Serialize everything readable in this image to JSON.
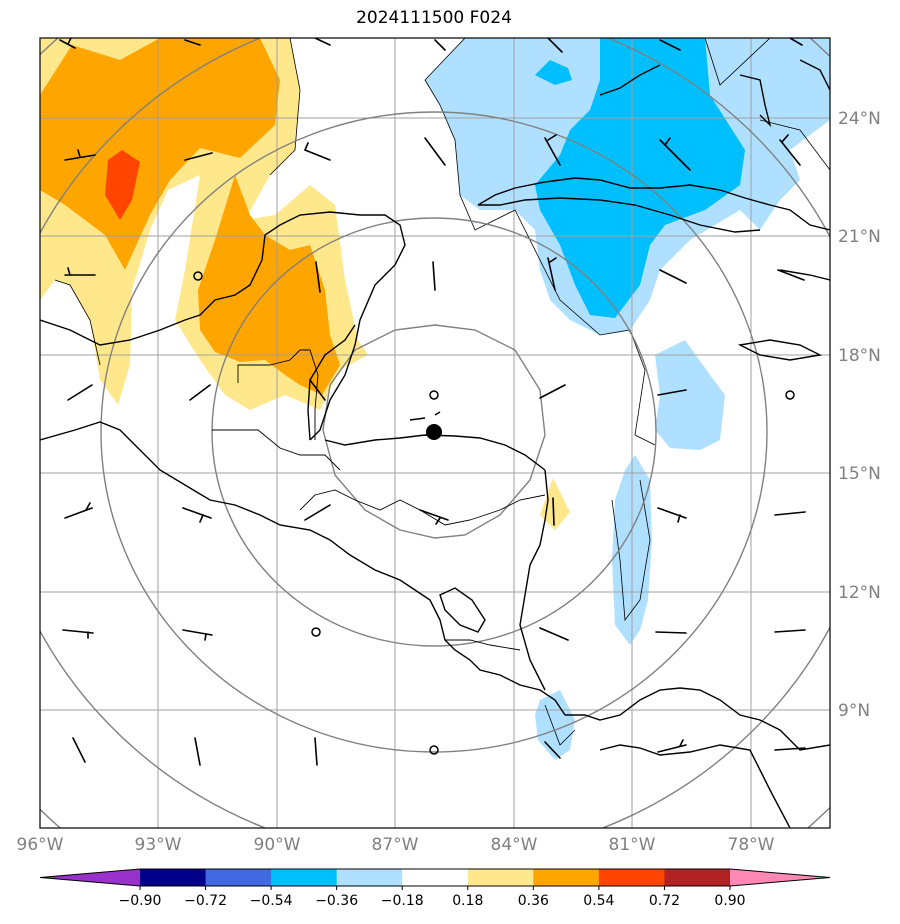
{
  "title": "2024111500 F024",
  "lon_labels": [
    "96°W",
    "93°W",
    "90°W",
    "87°W",
    "84°W",
    "81°W",
    "78°W"
  ],
  "lat_labels": [
    "24°N",
    "21°N",
    "18°N",
    "15°N",
    "12°N",
    "9°N"
  ],
  "colorbar": {
    "ticks": [
      "−0.90",
      "−0.72",
      "−0.54",
      "−0.36",
      "−0.18",
      "0.18",
      "0.36",
      "0.54",
      "0.72",
      "0.90"
    ],
    "colors": [
      "#9932cc",
      "#00008b",
      "#4169e1",
      "#00bfff",
      "#b0e0ff",
      "#ffffff",
      "#ffe88c",
      "#ffa500",
      "#ff4500",
      "#b22222",
      "#ff88b4"
    ]
  },
  "center_marker": {
    "lon": -86,
    "lat": 16.1
  },
  "colors": {
    "frame": "#000000",
    "grid": "#a0a0a0",
    "range_rings": "#808080",
    "coast": "#000000"
  }
}
